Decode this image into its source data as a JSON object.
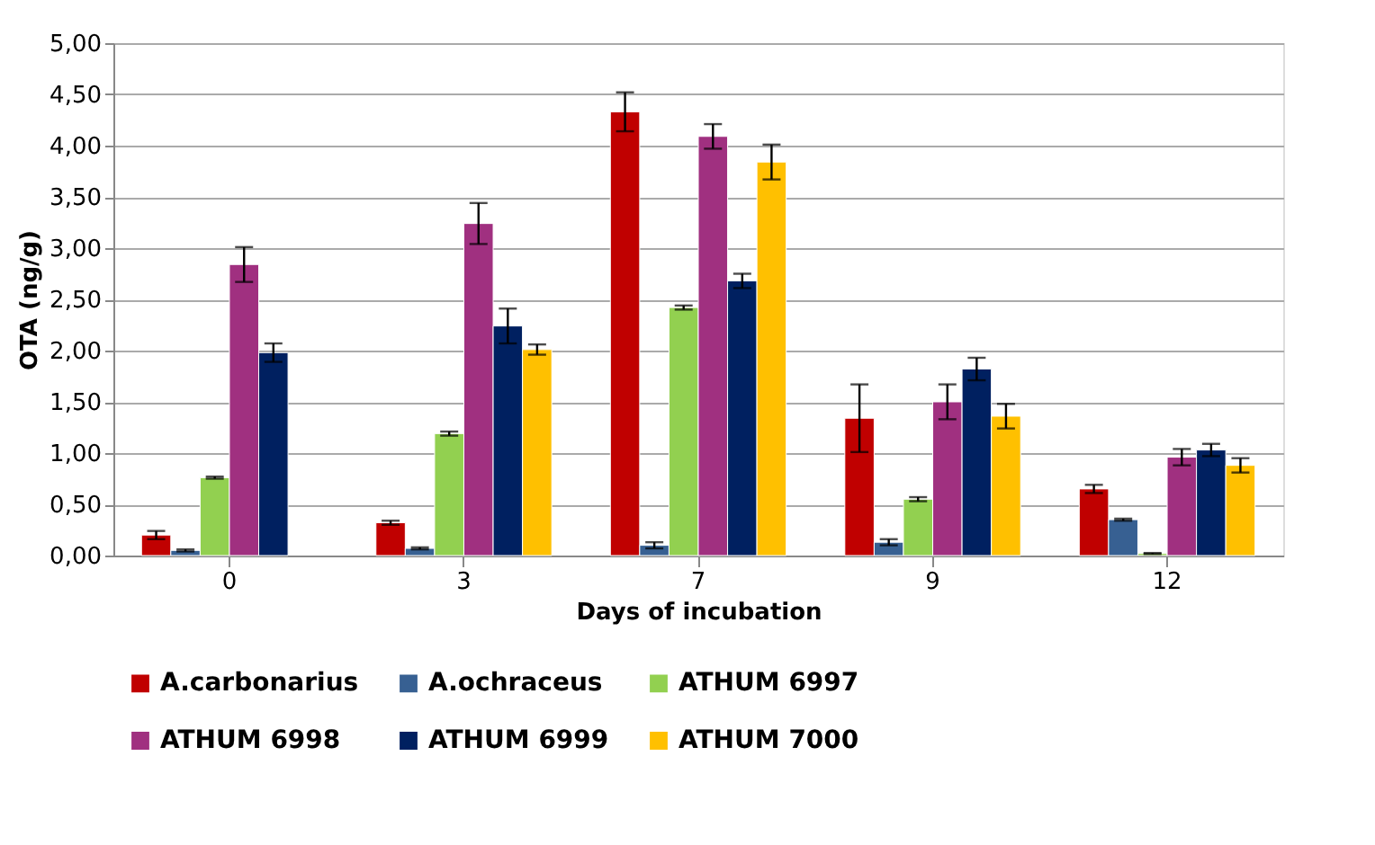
{
  "chart_data": {
    "type": "bar",
    "xlabel": "Days of incubation",
    "ylabel": "OTA (ng/g)",
    "categories": [
      "0",
      "3",
      "7",
      "9",
      "12"
    ],
    "series": [
      {
        "name": "A.carbonarius",
        "color": "#c00000",
        "values": [
          0.2,
          0.32,
          4.33,
          1.34,
          0.65
        ],
        "errors": [
          0.04,
          0.02,
          0.19,
          0.33,
          0.04
        ]
      },
      {
        "name": "A.ochraceus",
        "color": "#376092",
        "values": [
          0.05,
          0.07,
          0.1,
          0.13,
          0.35
        ],
        "errors": [
          0.01,
          0.01,
          0.03,
          0.03,
          0.01
        ]
      },
      {
        "name": "ATHUM 6997",
        "color": "#92d050",
        "values": [
          0.76,
          1.19,
          2.42,
          0.55,
          0.02
        ],
        "errors": [
          0.01,
          0.02,
          0.02,
          0.02,
          0.005
        ]
      },
      {
        "name": "ATHUM 6998",
        "color": "#a03080",
        "values": [
          2.84,
          3.24,
          4.09,
          1.5,
          0.96
        ],
        "errors": [
          0.17,
          0.2,
          0.12,
          0.17,
          0.08
        ]
      },
      {
        "name": "ATHUM 6999",
        "color": "#002060",
        "values": [
          1.98,
          2.24,
          2.68,
          1.82,
          1.03
        ],
        "errors": [
          0.09,
          0.17,
          0.07,
          0.11,
          0.06
        ]
      },
      {
        "name": "ATHUM 7000",
        "color": "#ffc000",
        "values": [
          null,
          2.01,
          3.84,
          1.36,
          0.88
        ],
        "errors": [
          null,
          0.05,
          0.17,
          0.12,
          0.07
        ]
      }
    ],
    "ylim": [
      0,
      5
    ],
    "yticks": [
      {
        "value": 0,
        "label": "0,00"
      },
      {
        "value": 0.5,
        "label": "0,50"
      },
      {
        "value": 1,
        "label": "1,00"
      },
      {
        "value": 1.5,
        "label": "1,50"
      },
      {
        "value": 2,
        "label": "2,00"
      },
      {
        "value": 2.5,
        "label": "2,50"
      },
      {
        "value": 3,
        "label": "3,00"
      },
      {
        "value": 3.5,
        "label": "3,50"
      },
      {
        "value": 4,
        "label": "4,00"
      },
      {
        "value": 4.5,
        "label": "4,50"
      },
      {
        "value": 5,
        "label": "5,00"
      }
    ],
    "grid": "y",
    "legend": "bottom"
  }
}
